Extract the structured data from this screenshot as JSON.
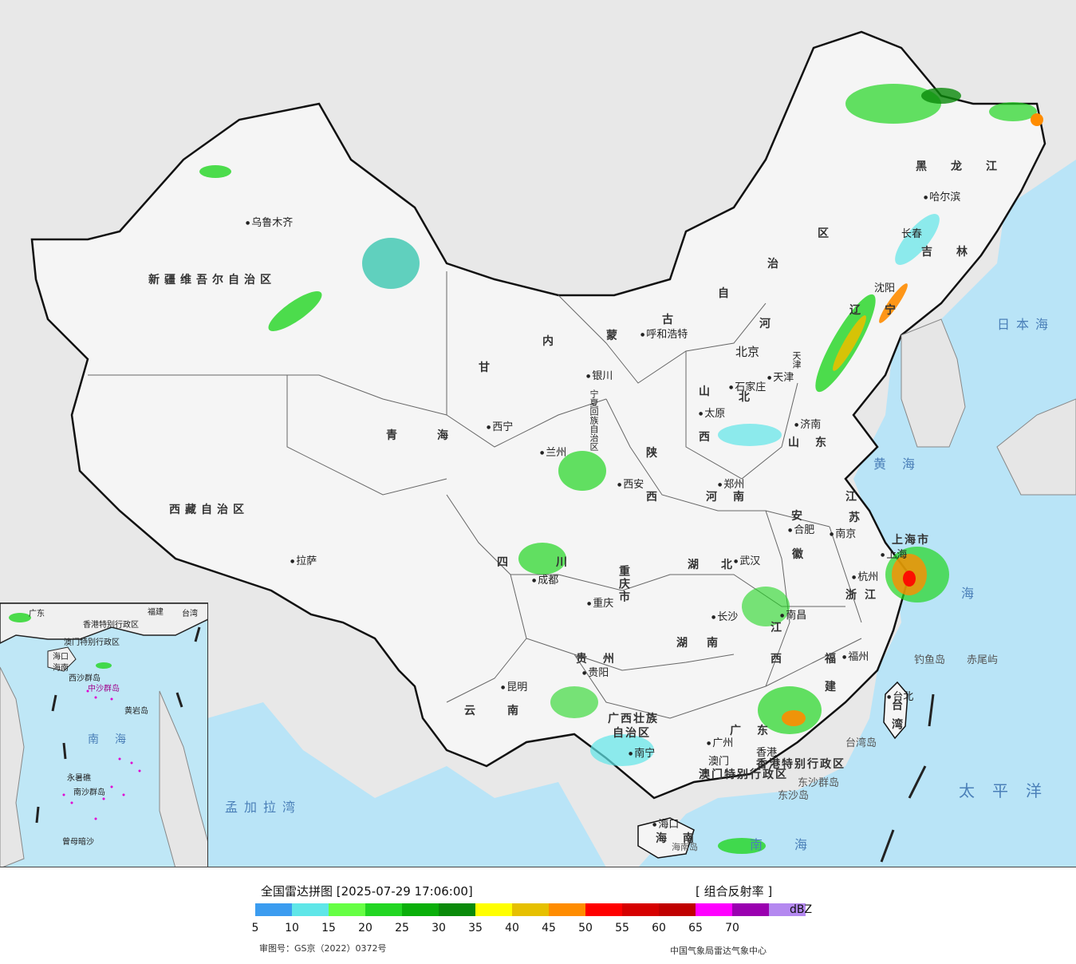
{
  "map": {
    "regions": {
      "xinjiang": "新疆维吾尔自治区",
      "xizang": "西藏自治区",
      "qinghai": "青海",
      "gansu": "甘",
      "neimenggu_1": "内",
      "neimenggu_2": "蒙",
      "neimenggu_3": "古",
      "neimenggu_4": "自",
      "neimenggu_5": "治",
      "neimenggu_6": "区",
      "heilongjiang": "黑龙江",
      "jilin": "吉林",
      "liaoning": "辽宁",
      "hebei_1": "河",
      "hebei_2": "北",
      "shanxi_1": "山",
      "shanxi_2": "西",
      "shaanxi_1": "陕",
      "shaanxi_2": "西",
      "henan": "河南",
      "shandong": "山东",
      "jiangsu_1": "江",
      "jiangsu_2": "苏",
      "anhui_1": "安",
      "anhui_2": "徽",
      "hubei_1": "湖",
      "hubei_2": "北",
      "hunan_1": "湖",
      "hunan_2": "南",
      "sichuan_1": "四",
      "sichuan_2": "川",
      "chongqing": "重庆市",
      "guizhou": "贵州",
      "yunnan": "云南",
      "guangxi_1": "广西壮族",
      "guangxi_2": "自治区",
      "guangdong": "广东",
      "jiangxi_1": "江",
      "jiangxi_2": "西",
      "fujian_1": "福",
      "fujian_2": "建",
      "zhejiang": "浙江",
      "shanghai": "上海市",
      "ningxia": "宁夏回族自治区",
      "tianjin": "天津",
      "hongkong": "香港特别行政区",
      "macau": "澳门特别行政区",
      "taiwan": "台湾",
      "hainan": "海南"
    },
    "cities": {
      "urumqi": "乌鲁木齐",
      "lhasa": "拉萨",
      "xining": "西宁",
      "lanzhou": "兰州",
      "yinchuan": "银川",
      "hohhot": "呼和浩特",
      "beijing": "北京",
      "tianjin": "天津",
      "shijiazhuang": "石家庄",
      "taiyuan": "太原",
      "jinan": "济南",
      "zhengzhou": "郑州",
      "xian": "西安",
      "chengdu": "成都",
      "chongqing": "重庆",
      "wuhan": "武汉",
      "hefei": "合肥",
      "nanjing": "南京",
      "shanghai": "上海",
      "hangzhou": "杭州",
      "changsha": "长沙",
      "nanchang": "南昌",
      "fuzhou": "福州",
      "guiyang": "贵阳",
      "kunming": "昆明",
      "nanning": "南宁",
      "guangzhou": "广州",
      "hongkong": "香港",
      "macau": "澳门",
      "haikou": "海口",
      "taipei": "台北",
      "harbin": "哈尔滨",
      "changchun": "长春",
      "shenyang": "沈阳"
    },
    "seas": {
      "japan_sea": "日本海",
      "yellow_sea": "黄海",
      "east_china_sea": "海",
      "pacific": "太平洋",
      "south_china_sea": "南海",
      "bay_of_bengal": "孟加拉湾"
    },
    "islands": {
      "diaoyu": "钓鱼岛",
      "chiwei": "赤尾屿",
      "taiwan_island": "台湾岛",
      "dongsha_qundao": "东沙群岛",
      "dongsha_dao": "东沙岛",
      "hainan_island": "海南岛"
    }
  },
  "inset": {
    "labels": {
      "guangdong": "广东",
      "fujian": "福建",
      "taiwan": "台湾",
      "hainan": "海南",
      "haikou": "海口",
      "xisha": "西沙群岛",
      "zhongsha": "中沙群岛",
      "huangyan": "黄岩岛",
      "nansha": "南沙群岛",
      "zengmu": "曾母暗沙",
      "yongshu": "永暑礁",
      "nanhai": "南海",
      "hk": "香港特别行政区",
      "mo": "澳门特别行政区"
    }
  },
  "legend": {
    "title": "全国雷达拼图 [2025-07-29 17:06:00]",
    "product": "[ 组合反射率 ]",
    "unit": "dBZ",
    "colors": [
      "#3b9cf0",
      "#5fe6e8",
      "#66ff44",
      "#22d622",
      "#0aaf0a",
      "#0a8a0a",
      "#ffff00",
      "#e6c000",
      "#ff8c00",
      "#ff0000",
      "#d60000",
      "#c00000",
      "#ff00ff",
      "#9a00b0",
      "#b488f0"
    ],
    "ticks": [
      "5",
      "10",
      "15",
      "20",
      "25",
      "30",
      "35",
      "40",
      "45",
      "50",
      "55",
      "60",
      "65",
      "70"
    ],
    "approval": "审图号：GS京（2022）0372号",
    "credit": "中国气象局雷达气象中心"
  }
}
